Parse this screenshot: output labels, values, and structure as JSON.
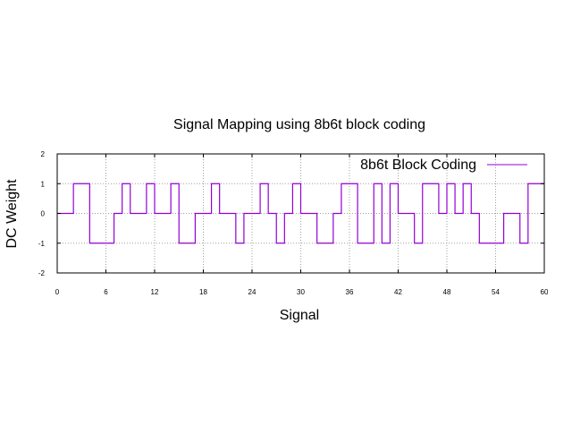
{
  "chart_data": {
    "type": "line",
    "title": "Signal Mapping using 8b6t block coding",
    "xlabel": "Signal",
    "ylabel": "DC Weight",
    "xlim": [
      0,
      60
    ],
    "ylim": [
      -2,
      2
    ],
    "xticks": [
      0,
      6,
      12,
      18,
      24,
      30,
      36,
      42,
      48,
      54,
      60
    ],
    "yticks": [
      -2,
      -1,
      0,
      1,
      2
    ],
    "grid": true,
    "legend_position": "top-right",
    "line_style": "step",
    "series": [
      {
        "name": "8b6t Block Coding",
        "color": "#9400d3",
        "values": [
          0,
          0,
          1,
          1,
          -1,
          -1,
          -1,
          0,
          1,
          0,
          0,
          1,
          0,
          0,
          1,
          -1,
          -1,
          0,
          0,
          1,
          0,
          0,
          -1,
          0,
          0,
          1,
          0,
          -1,
          0,
          1,
          0,
          0,
          -1,
          -1,
          0,
          1,
          1,
          -1,
          -1,
          1,
          -1,
          1,
          0,
          0,
          -1,
          1,
          1,
          0,
          1,
          0,
          1,
          0,
          -1,
          -1,
          -1,
          0,
          0,
          -1,
          1,
          1
        ]
      }
    ]
  }
}
